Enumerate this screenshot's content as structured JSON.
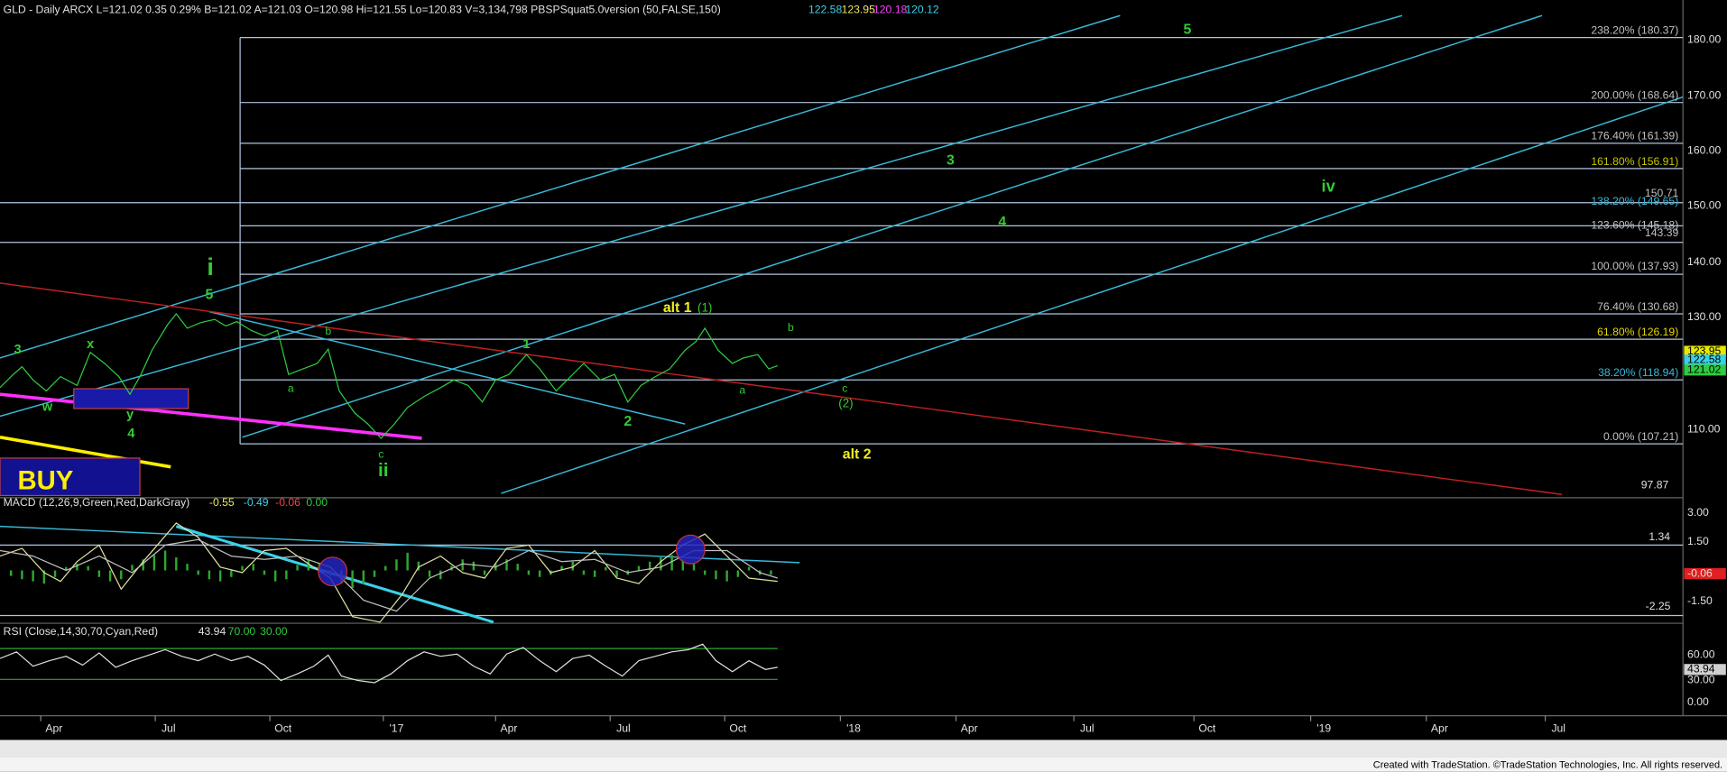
{
  "header": {
    "symbol_info": "GLD - Daily  ARCX  L=121.02  0.35  0.29%  B=121.02  A=121.03  O=120.98  Hi=121.55  Lo=120.83  V=3,134,798  PBSPSquat5.0version (50,FALSE,150)",
    "indicator_values": [
      "122.58",
      "123.95",
      "120.18",
      "120.12"
    ]
  },
  "price_axis": [
    "180.00",
    "170.00",
    "160.00",
    "150.00",
    "140.00",
    "130.00",
    "110.00",
    "97.87"
  ],
  "price_markers": [
    "123.95",
    "122.58",
    "121.02"
  ],
  "fib_labels": [
    "238.20% (180.37)",
    "200.00% (168.64)",
    "176.40% (161.39)",
    "161.80% (156.91)",
    "150.71",
    "138.20% (149.65)",
    "123.60% (145.18)",
    "143.39",
    "100.00% (137.93)",
    "76.40% (130.68)",
    "61.80% (126.19)",
    "38.20% (118.94)",
    "0.00% (107.21)"
  ],
  "wave_labels": [
    "3",
    "w",
    "x",
    "y",
    "4",
    "i",
    "5",
    "b",
    "a",
    "c",
    "ii",
    "1",
    "2",
    "alt 1",
    "(1)",
    "b",
    "a",
    "c",
    "(2)",
    "alt 2",
    "3",
    "4",
    "5",
    "iv"
  ],
  "buy_label": "BUY",
  "macd": {
    "header": "MACD (12,26,9,Green,Red,DarkGray)",
    "values": [
      "-0.55",
      "-0.49",
      "-0.06",
      "0.00"
    ],
    "axis": [
      "3.00",
      "1.50",
      "1.34",
      "-0.06",
      "-1.50",
      "-2.25"
    ]
  },
  "rsi": {
    "header": "RSI (Close,14,30,70,Cyan,Red)",
    "values": [
      "43.94",
      "70.00",
      "30.00"
    ],
    "axis": [
      "60.00",
      "43.94",
      "30.00",
      "0.00"
    ]
  },
  "time_axis": [
    "Apr",
    "Jul",
    "Oct",
    "'17",
    "Apr",
    "Jul",
    "Oct",
    "'18",
    "Apr",
    "Jul",
    "Oct",
    "'19",
    "Apr",
    "Jul"
  ],
  "footer": "Created with TradeStation. ©TradeStation Technologies, Inc. All rights reserved."
}
